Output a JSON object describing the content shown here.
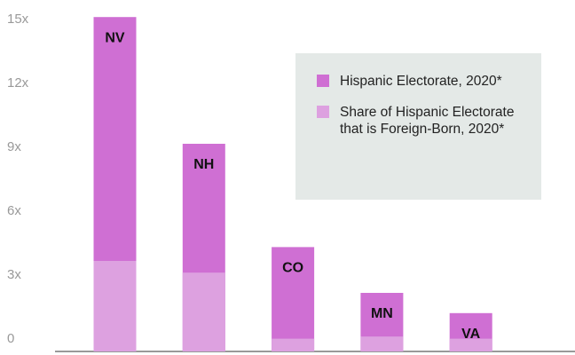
{
  "chart_data": {
    "type": "bar",
    "categories": [
      "NV",
      "NH",
      "CO",
      "MN",
      "VA"
    ],
    "series": [
      {
        "name": "Hispanic Electorate, 2020*",
        "color": "#cf6fd3",
        "values": [
          15.7,
          9.75,
          4.9,
          2.75,
          1.8
        ]
      },
      {
        "name": "Share of Hispanic Electorate that is Foreign-Born, 2020*",
        "color": "#dda1e0",
        "values": [
          4.25,
          3.7,
          0.6,
          0.7,
          0.6
        ]
      }
    ],
    "ylim": [
      0,
      16.5
    ],
    "yticks": [
      0,
      {
        "value": 3,
        "label": "3x"
      },
      {
        "value": 6,
        "label": "6x"
      },
      {
        "value": 9,
        "label": "9x"
      },
      {
        "value": 12,
        "label": "12x"
      },
      {
        "value": 15,
        "label": "15x"
      }
    ],
    "grid": false
  }
}
